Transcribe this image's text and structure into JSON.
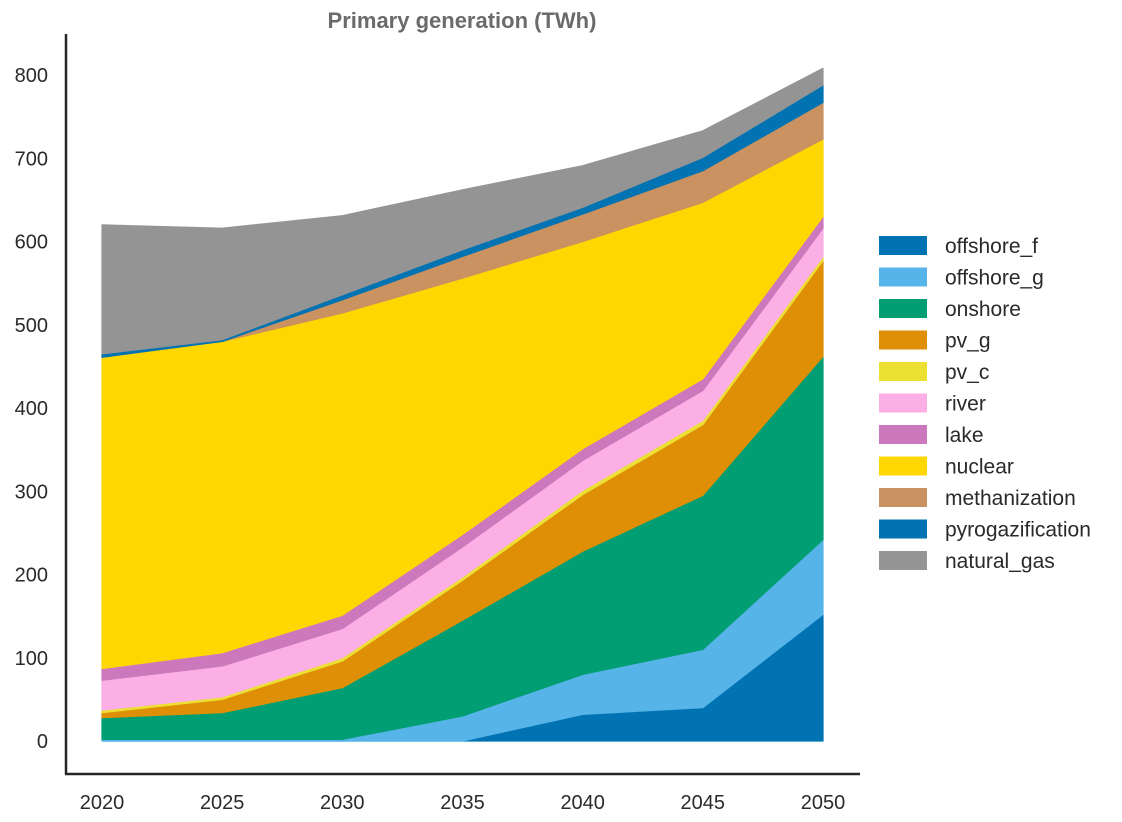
{
  "chart_data": {
    "type": "area",
    "stacked": true,
    "title": "Primary generation (TWh)",
    "xlabel": "",
    "ylabel": "",
    "x": [
      2020,
      2025,
      2030,
      2035,
      2040,
      2045,
      2050
    ],
    "x_tick_labels": [
      "2020",
      "2025",
      "2030",
      "2035",
      "2040",
      "2045",
      "2050"
    ],
    "y_ticks": [
      0,
      100,
      200,
      300,
      400,
      500,
      600,
      700,
      800
    ],
    "y_tick_labels": [
      "0",
      "100",
      "200",
      "300",
      "400",
      "500",
      "600",
      "700",
      "800"
    ],
    "ylim": [
      -40,
      850
    ],
    "xlim": [
      2018.5,
      2051.5
    ],
    "grid": false,
    "legend_position": "right",
    "series": [
      {
        "name": "offshore_f",
        "color": "#0173b2",
        "values": [
          0,
          0,
          0,
          0,
          32,
          40,
          152
        ]
      },
      {
        "name": "offshore_g",
        "color": "#56b4e9",
        "values": [
          2,
          2,
          2,
          30,
          48,
          70,
          90
        ]
      },
      {
        "name": "onshore",
        "color": "#029e73",
        "values": [
          26,
          32,
          62,
          115,
          148,
          185,
          220
        ]
      },
      {
        "name": "pv_g",
        "color": "#de8f05",
        "values": [
          6,
          16,
          32,
          48,
          68,
          85,
          115
        ]
      },
      {
        "name": "pv_c",
        "color": "#ece133",
        "values": [
          3,
          3,
          4,
          4,
          5,
          5,
          5
        ]
      },
      {
        "name": "river",
        "color": "#fbafe4",
        "values": [
          36,
          37,
          35,
          36,
          36,
          36,
          34
        ]
      },
      {
        "name": "lake",
        "color": "#cc78bc",
        "values": [
          14,
          16,
          16,
          15,
          14,
          14,
          14
        ]
      },
      {
        "name": "nuclear",
        "color": "#ffd700",
        "values": [
          374,
          374,
          363,
          308,
          249,
          212,
          93
        ]
      },
      {
        "name": "methanization",
        "color": "#ca9161",
        "values": [
          0,
          0,
          16,
          26,
          33,
          38,
          44
        ]
      },
      {
        "name": "pyrogazification",
        "color": "#0173b2",
        "values": [
          4,
          2,
          6,
          8,
          8,
          16,
          21
        ]
      },
      {
        "name": "natural_gas",
        "color": "#949494",
        "values": [
          155,
          134,
          95,
          72,
          50,
          32,
          20
        ]
      }
    ]
  }
}
